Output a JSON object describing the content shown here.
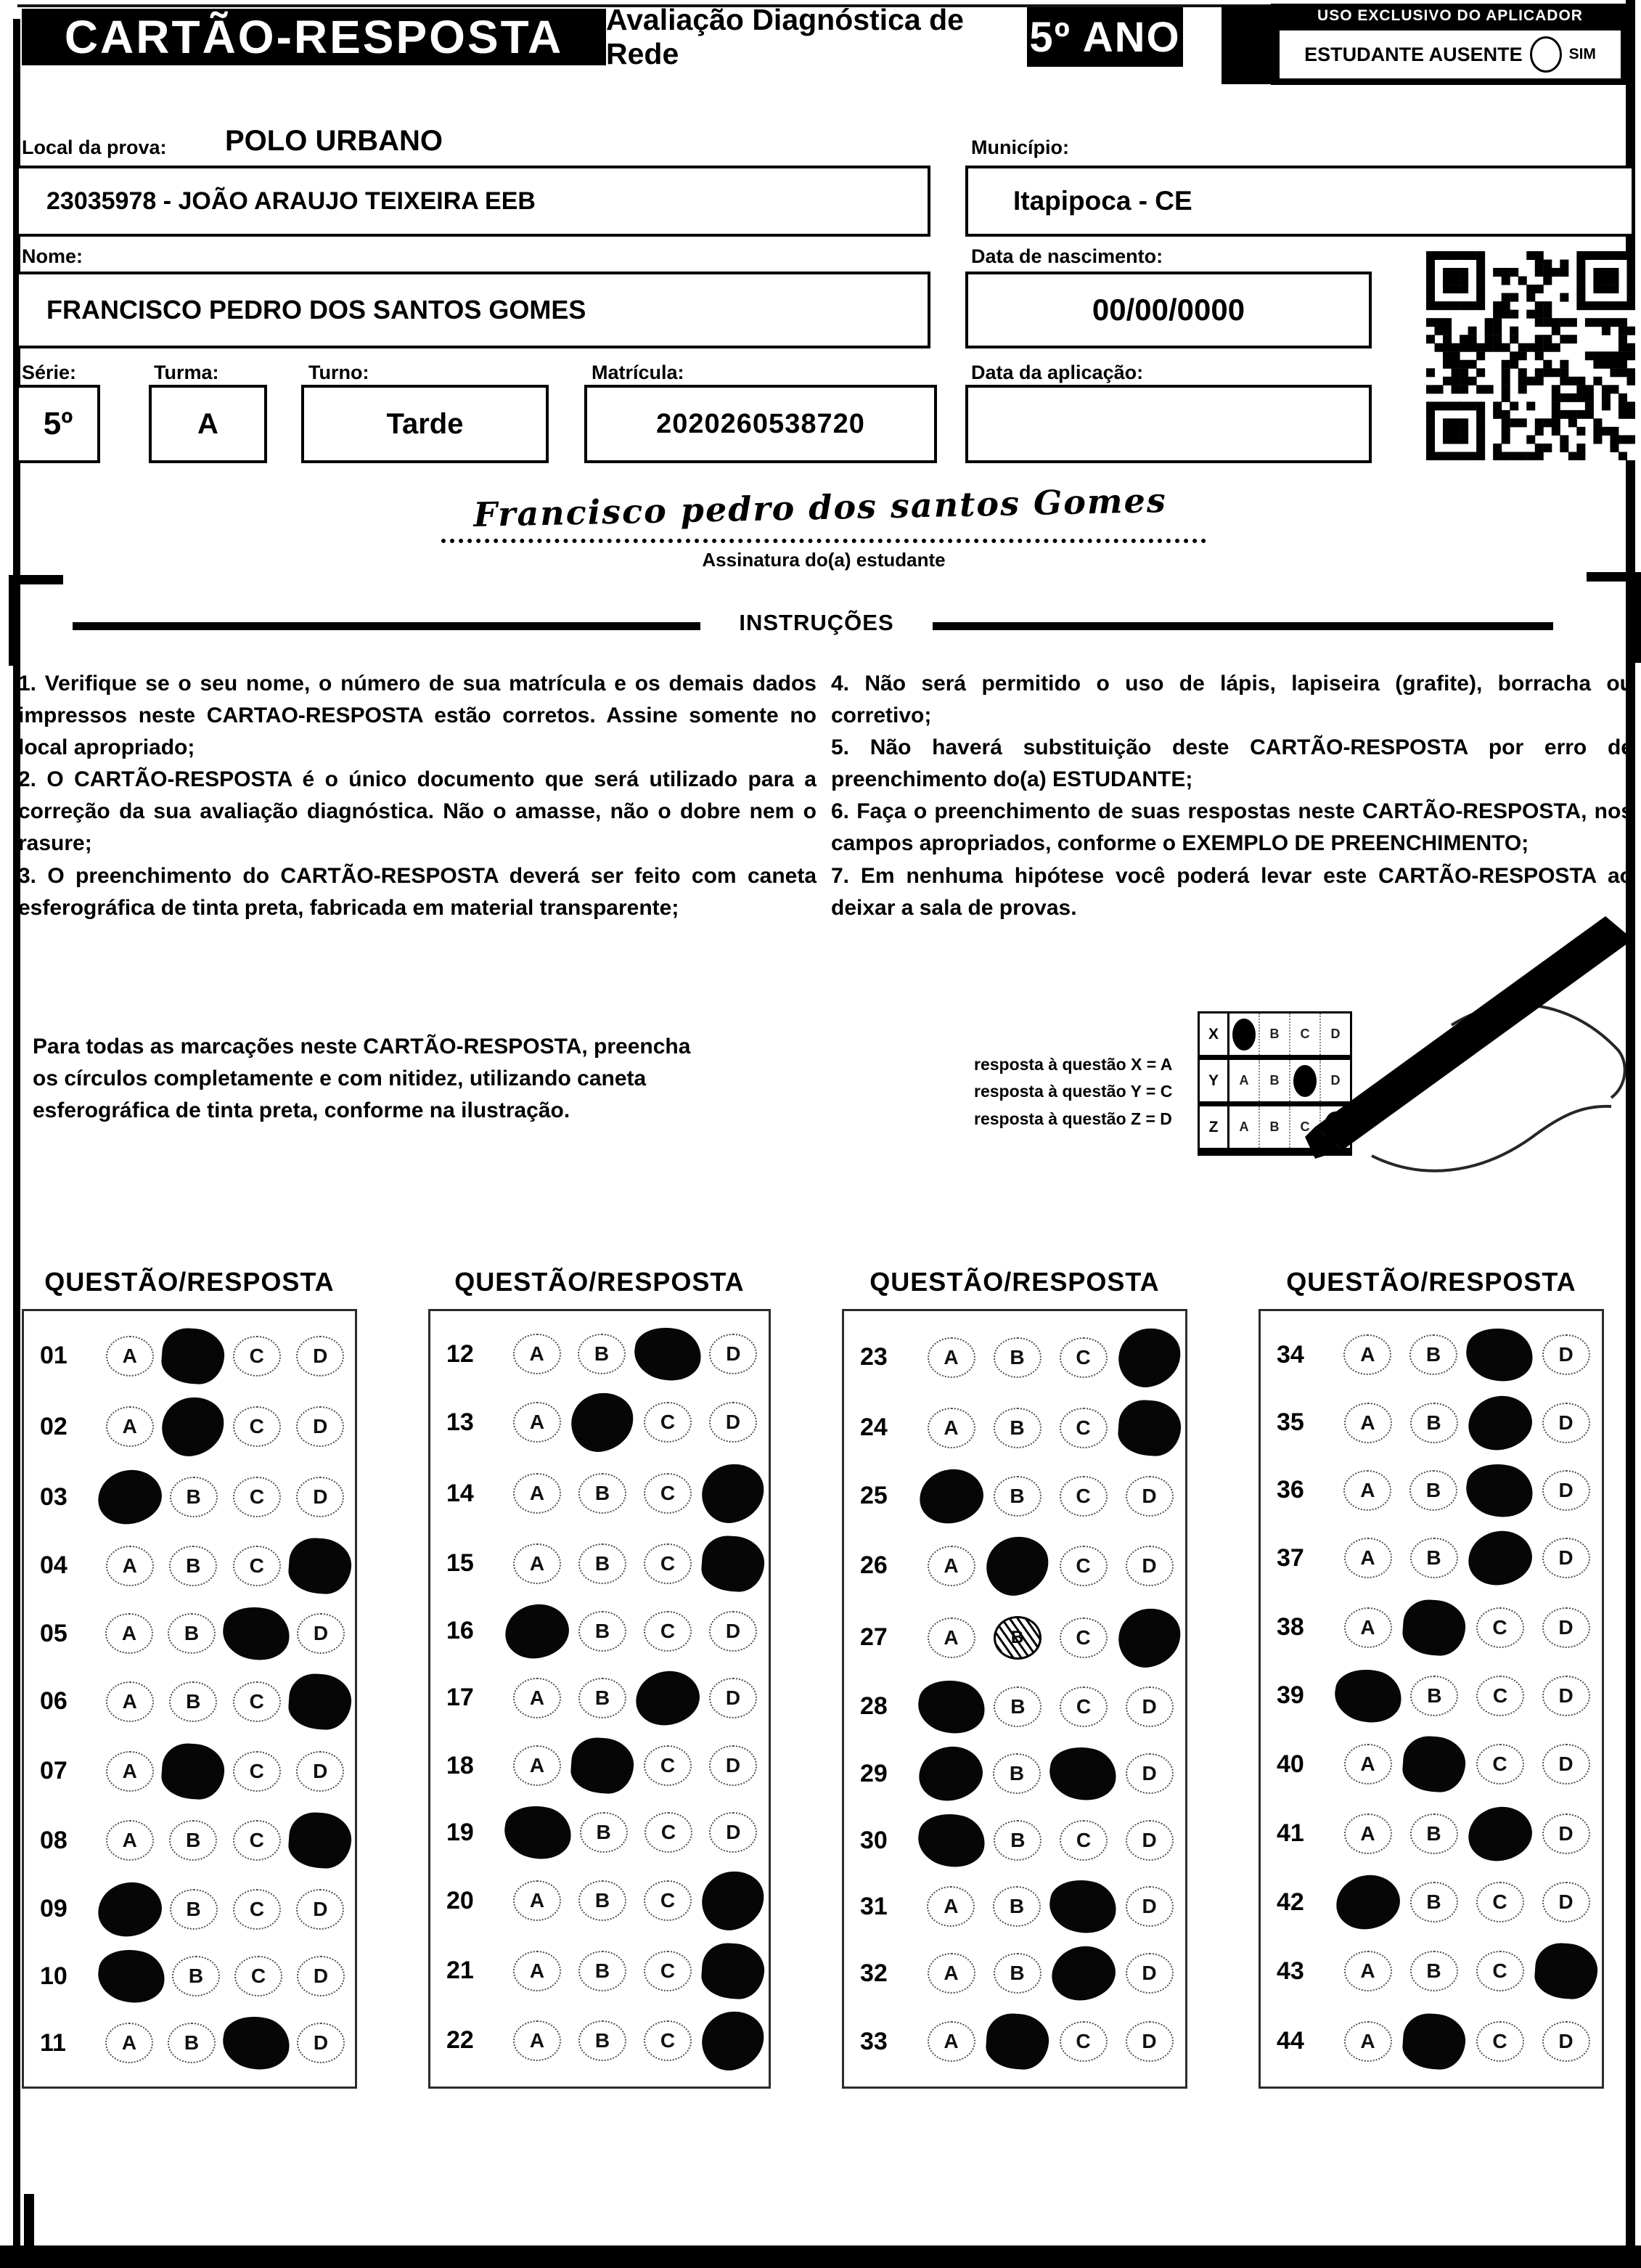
{
  "header": {
    "card_title": "CARTÃO-RESPOSTA",
    "exam_title": "Avaliação Diagnóstica de Rede",
    "grade": "5º ANO",
    "applicator_label": "USO EXCLUSIVO DO APLICADOR",
    "absent_label": "ESTUDANTE AUSENTE",
    "absent_option": "SIM"
  },
  "form": {
    "local_label": "Local da prova:",
    "local_value": "POLO URBANO",
    "school_value": "23035978 - JOÃO ARAUJO TEIXEIRA EEB",
    "municipio_label": "Município:",
    "municipio_value": "Itapipoca - CE",
    "nome_label": "Nome:",
    "nome_value": "FRANCISCO PEDRO DOS SANTOS GOMES",
    "nascimento_label": "Data de nascimento:",
    "nascimento_value": "00/00/0000",
    "serie_label": "Série:",
    "serie_value": "5º",
    "turma_label": "Turma:",
    "turma_value": "A",
    "turno_label": "Turno:",
    "turno_value": "Tarde",
    "matricula_label": "Matrícula:",
    "matricula_value": "2020260538720",
    "aplicacao_label": "Data da aplicação:",
    "aplicacao_value": ""
  },
  "signature": {
    "text": "Francisco pedro dos santos Gomes",
    "label": "Assinatura do(a) estudante"
  },
  "instructions": {
    "title": "INSTRUÇÕES",
    "left": [
      "1. Verifique se o seu nome, o número de sua matrícula e os demais dados impressos neste CARTAO-RESPOSTA estão corretos. Assine somente no local apropriado;",
      "2. O CARTÃO-RESPOSTA é o único documento que será utilizado para a correção da sua avaliação diagnóstica. Não o amasse, não o dobre nem o rasure;",
      "3. O preenchimento do CARTÃO-RESPOSTA deverá ser feito com caneta esferográfica de tinta preta, fabricada em material transparente;"
    ],
    "right": [
      "4. Não será permitido o uso de lápis, lapiseira (grafite), borracha ou corretivo;",
      "5. Não haverá substituição deste CARTÃO-RESPOSTA por erro de preenchimento do(a) ESTUDANTE;",
      "6. Faça o preenchimento de suas respostas neste CARTÃO-RESPOSTA, nos campos apropriados, conforme o EXEMPLO DE PREENCHIMENTO;",
      "7. Em nenhuma hipótese você poderá levar este CARTÃO-RESPOSTA ao deixar a sala de provas."
    ]
  },
  "example": {
    "text": "Para todas as marcações neste CARTÃO-RESPOSTA, preencha os círculos completamente e com nitidez, utilizando caneta esferográfica de tinta preta, conforme na ilustração.",
    "legend": [
      "resposta à questão X = A",
      "resposta à questão Y = C",
      "resposta à questão Z = D"
    ],
    "grid": {
      "options": [
        "A",
        "B",
        "C",
        "D"
      ],
      "rows": [
        {
          "label": "X",
          "marked": [
            "A"
          ]
        },
        {
          "label": "Y",
          "marked": [
            "C"
          ]
        },
        {
          "label": "Z",
          "marked": [
            "D"
          ]
        }
      ]
    }
  },
  "answers": {
    "section_title": "QUESTÃO/RESPOSTA",
    "options": [
      "A",
      "B",
      "C",
      "D"
    ],
    "columns": [
      {
        "questions": [
          {
            "n": "01",
            "marked": [
              "B"
            ]
          },
          {
            "n": "02",
            "marked": [
              "B"
            ]
          },
          {
            "n": "03",
            "marked": [
              "A"
            ]
          },
          {
            "n": "04",
            "marked": [
              "D"
            ]
          },
          {
            "n": "05",
            "marked": [
              "C"
            ]
          },
          {
            "n": "06",
            "marked": [
              "D"
            ]
          },
          {
            "n": "07",
            "marked": [
              "B"
            ]
          },
          {
            "n": "08",
            "marked": [
              "D"
            ]
          },
          {
            "n": "09",
            "marked": [
              "A"
            ]
          },
          {
            "n": "10",
            "marked": [
              "A"
            ]
          },
          {
            "n": "11",
            "marked": [
              "C"
            ]
          }
        ]
      },
      {
        "questions": [
          {
            "n": "12",
            "marked": [
              "C"
            ]
          },
          {
            "n": "13",
            "marked": [
              "B"
            ]
          },
          {
            "n": "14",
            "marked": [
              "D"
            ]
          },
          {
            "n": "15",
            "marked": [
              "D"
            ]
          },
          {
            "n": "16",
            "marked": [
              "A"
            ]
          },
          {
            "n": "17",
            "marked": [
              "C"
            ]
          },
          {
            "n": "18",
            "marked": [
              "B"
            ]
          },
          {
            "n": "19",
            "marked": [
              "A"
            ]
          },
          {
            "n": "20",
            "marked": [
              "D"
            ]
          },
          {
            "n": "21",
            "marked": [
              "D"
            ]
          },
          {
            "n": "22",
            "marked": [
              "D"
            ]
          }
        ]
      },
      {
        "questions": [
          {
            "n": "23",
            "marked": [
              "D"
            ]
          },
          {
            "n": "24",
            "marked": [
              "D"
            ]
          },
          {
            "n": "25",
            "marked": [
              "A"
            ]
          },
          {
            "n": "26",
            "marked": [
              "B"
            ]
          },
          {
            "n": "27",
            "marked": [
              "D"
            ],
            "scribbled": [
              "B"
            ]
          },
          {
            "n": "28",
            "marked": [
              "A"
            ]
          },
          {
            "n": "29",
            "marked": [
              "A",
              "C"
            ]
          },
          {
            "n": "30",
            "marked": [
              "A"
            ]
          },
          {
            "n": "31",
            "marked": [
              "C"
            ]
          },
          {
            "n": "32",
            "marked": [
              "C"
            ]
          },
          {
            "n": "33",
            "marked": [
              "B"
            ]
          }
        ]
      },
      {
        "questions": [
          {
            "n": "34",
            "marked": [
              "C"
            ]
          },
          {
            "n": "35",
            "marked": [
              "C"
            ]
          },
          {
            "n": "36",
            "marked": [
              "C"
            ]
          },
          {
            "n": "37",
            "marked": [
              "C"
            ]
          },
          {
            "n": "38",
            "marked": [
              "B"
            ]
          },
          {
            "n": "39",
            "marked": [
              "A"
            ]
          },
          {
            "n": "40",
            "marked": [
              "B"
            ]
          },
          {
            "n": "41",
            "marked": [
              "C"
            ]
          },
          {
            "n": "42",
            "marked": [
              "A"
            ]
          },
          {
            "n": "43",
            "marked": [
              "D"
            ]
          },
          {
            "n": "44",
            "marked": [
              "B"
            ]
          }
        ]
      }
    ]
  }
}
